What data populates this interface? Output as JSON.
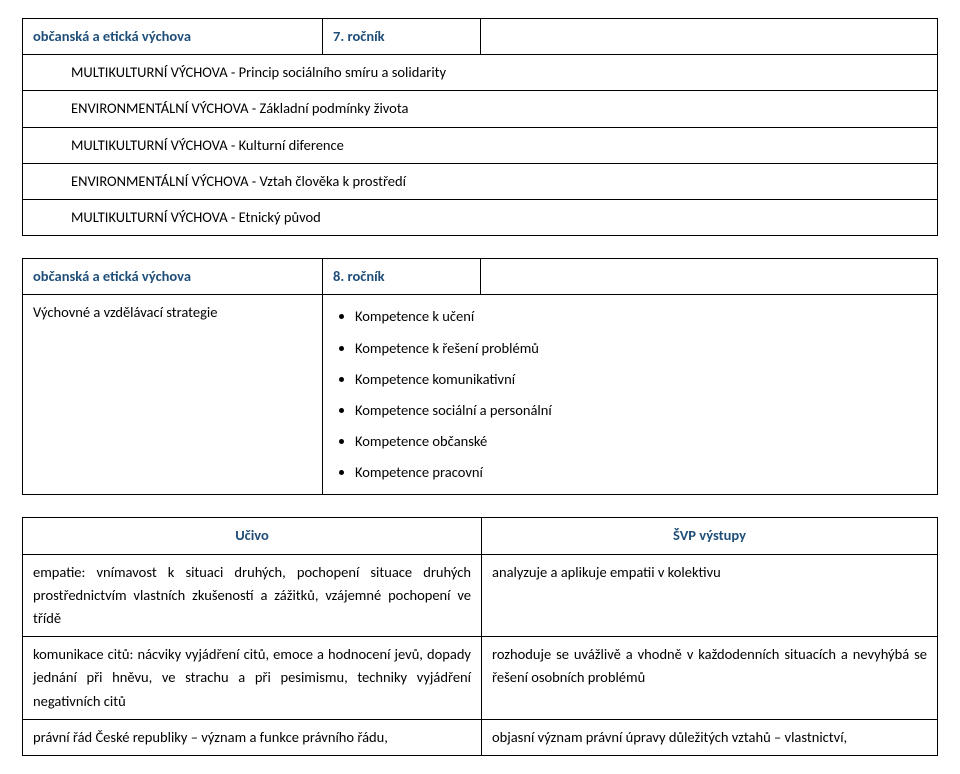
{
  "section1": {
    "subject": "občanská a etická výchova",
    "grade": "7. ročník",
    "rows": [
      "MULTIKULTURNÍ VÝCHOVA - Princip sociálního smíru a solidarity",
      "ENVIRONMENTÁLNÍ VÝCHOVA - Základní podmínky života",
      "MULTIKULTURNÍ VÝCHOVA - Kulturní diference",
      "ENVIRONMENTÁLNÍ VÝCHOVA - Vztah člověka k prostředí",
      "MULTIKULTURNÍ VÝCHOVA - Etnický původ"
    ]
  },
  "section2": {
    "subject": "občanská a etická výchova",
    "grade": "8. ročník",
    "strategies_label": "Výchovné a vzdělávací strategie",
    "bullets": [
      "Kompetence k učení",
      "Kompetence k řešení problémů",
      "Kompetence komunikativní",
      "Kompetence sociální a personální",
      "Kompetence občanské",
      "Kompetence pracovní"
    ]
  },
  "section3": {
    "header_left": "Učivo",
    "header_right": "ŠVP výstupy",
    "rows": [
      {
        "left": "empatie: vnímavost k situaci druhých, pochopení situace druhých prostřednictvím vlastních zkušeností a zážitků, vzájemné pochopení ve třídě",
        "right": "analyzuje a aplikuje empatii v kolektivu"
      },
      {
        "left": "komunikace citů: nácviky vyjádření citů, emoce a hodnocení jevů, dopady jednání při hněvu, ve strachu a při pesimismu, techniky vyjádření negativních citů",
        "right": "rozhoduje se uvážlivě a vhodně v každodenních situacích a nevyhýbá se řešení osobních problémů"
      },
      {
        "left": "právní řád České republiky – význam a funkce právního řádu,",
        "right": "objasní význam právní úpravy důležitých vztahů – vlastnictví,"
      }
    ]
  },
  "colors": {
    "header_text": "#1f4e79",
    "border": "#000000",
    "bg": "#ffffff",
    "text": "#000000"
  }
}
